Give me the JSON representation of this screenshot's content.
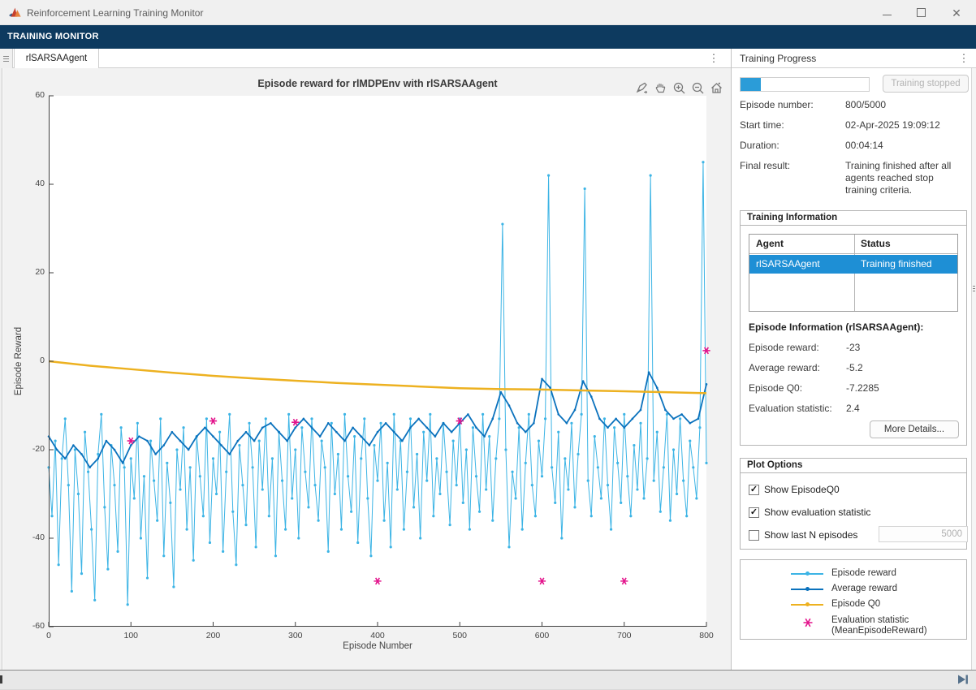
{
  "window": {
    "title": "Reinforcement Learning Training Monitor"
  },
  "ribbon": {
    "tab_label": "TRAINING MONITOR"
  },
  "document_tabs": {
    "active_tab": "rlSARSAAgent"
  },
  "figure_toolbar": {
    "icons": [
      "brush-icon",
      "pan-icon",
      "zoom-in-icon",
      "zoom-out-icon",
      "home-icon"
    ]
  },
  "panel": {
    "title": "Training Progress",
    "progress": {
      "percent": 16,
      "button_label": "Training stopped"
    },
    "fields": [
      {
        "label": "Episode number:",
        "value": "800/5000"
      },
      {
        "label": "Start time:",
        "value": "02-Apr-2025 19:09:12"
      },
      {
        "label": "Duration:",
        "value": "00:04:14"
      },
      {
        "label": "Final result:",
        "value": "Training finished after all agents reached stop training criteria."
      }
    ],
    "training_information": {
      "header": "Training Information",
      "table": {
        "columns": [
          "Agent",
          "Status"
        ],
        "rows": [
          {
            "agent": "rlSARSAAgent",
            "status": "Training finished",
            "selected": true
          }
        ]
      },
      "episode_info_header": "Episode Information (rlSARSAAgent):",
      "episode_fields": [
        {
          "label": "Episode reward:",
          "value": "-23"
        },
        {
          "label": "Average reward:",
          "value": "-5.2"
        },
        {
          "label": "Episode Q0:",
          "value": "-7.2285"
        },
        {
          "label": "Evaluation statistic:",
          "value": "2.4"
        }
      ],
      "more_details_label": "More Details..."
    },
    "plot_options": {
      "header": "Plot Options",
      "checkboxes": [
        {
          "label": "Show EpisodeQ0",
          "checked": true
        },
        {
          "label": "Show evaluation statistic",
          "checked": true
        },
        {
          "label": "Show last N episodes",
          "checked": false
        }
      ],
      "n_episodes_value": "5000"
    },
    "legend": [
      {
        "label": "Episode reward",
        "color": "#3cb4e5",
        "type": "line"
      },
      {
        "label": "Average reward",
        "color": "#0b72bd",
        "type": "line"
      },
      {
        "label": "Episode Q0",
        "color": "#edb120",
        "type": "line"
      },
      {
        "label": "Evaluation statistic",
        "label2": "(MeanEpisodeReward)",
        "color": "#e3148c",
        "type": "asterisk"
      }
    ]
  },
  "colors": {
    "ribbon": "#0d3a5f",
    "selected_row": "#1e8fd5",
    "progress_fill": "#2b9cd8",
    "episode_reward": "#3cb4e5",
    "average_reward": "#0b72bd",
    "episode_q0": "#edb120",
    "evaluation": "#e3148c"
  },
  "chart_data": {
    "type": "line",
    "title": "Episode reward for rlMDPEnv with rlSARSAAgent",
    "xlabel": "Episode Number",
    "ylabel": "Episode Reward",
    "xlim": [
      0,
      800
    ],
    "ylim": [
      -60,
      60
    ],
    "xticks": [
      0,
      100,
      200,
      300,
      400,
      500,
      600,
      700,
      800
    ],
    "yticks": [
      60,
      40,
      20,
      0,
      -20,
      -40,
      -60
    ],
    "grid": false,
    "legend_position": "external-right-panel",
    "series": [
      {
        "name": "Episode reward",
        "color": "#3cb4e5",
        "width": 1,
        "marker_r": 1.6,
        "x_start": 0,
        "x_step": 4,
        "values": [
          -24,
          -35,
          -18,
          -46,
          -22,
          -13,
          -28,
          -52,
          -20,
          -30,
          -48,
          -16,
          -25,
          -38,
          -54,
          -21,
          -12,
          -33,
          -47,
          -19,
          -28,
          -43,
          -15,
          -24,
          -55,
          -22,
          -31,
          -14,
          -40,
          -26,
          -49,
          -18,
          -27,
          -36,
          -13,
          -44,
          -23,
          -32,
          -51,
          -20,
          -29,
          -15,
          -38,
          -24,
          -45,
          -17,
          -26,
          -35,
          -13,
          -41,
          -22,
          -30,
          -16,
          -43,
          -25,
          -12,
          -34,
          -46,
          -19,
          -28,
          -37,
          -14,
          -24,
          -42,
          -18,
          -29,
          -13,
          -35,
          -22,
          -44,
          -16,
          -27,
          -38,
          -12,
          -31,
          -20,
          -40,
          -15,
          -25,
          -33,
          -13,
          -28,
          -36,
          -18,
          -24,
          -43,
          -14,
          -30,
          -21,
          -38,
          -12,
          -26,
          -34,
          -17,
          -41,
          -22,
          -13,
          -31,
          -44,
          -19,
          -27,
          -14,
          -36,
          -23,
          -42,
          -12,
          -29,
          -18,
          -38,
          -25,
          -13,
          -33,
          -21,
          -40,
          -16,
          -27,
          -12,
          -35,
          -22,
          -30,
          -14,
          -25,
          -37,
          -18,
          -28,
          -13,
          -32,
          -20,
          -38,
          -15,
          -26,
          -34,
          -12,
          -29,
          -17,
          -36,
          -22,
          -13,
          31,
          -20,
          -42,
          -25,
          -31,
          -15,
          -38,
          -23,
          -12,
          -28,
          -35,
          -18,
          -26,
          -13,
          42,
          -24,
          -32,
          -16,
          -40,
          -22,
          -29,
          -14,
          -33,
          -21,
          -12,
          39,
          -27,
          -35,
          -17,
          -24,
          -31,
          -13,
          -28,
          -38,
          -15,
          -23,
          -32,
          -12,
          -26,
          -35,
          -19,
          -29,
          -14,
          -31,
          -22,
          42,
          -27,
          -16,
          -34,
          -24,
          -12,
          -36,
          -20,
          -30,
          -13,
          -27,
          -35,
          -18,
          -24,
          -31,
          -15,
          45,
          -23
        ]
      },
      {
        "name": "Average reward",
        "color": "#0b72bd",
        "width": 1.8,
        "marker_r": 1.3,
        "x_start": 0,
        "x_step": 10,
        "values": [
          -17,
          -20,
          -22,
          -19,
          -21,
          -24,
          -22,
          -18,
          -20,
          -23,
          -19,
          -17,
          -18,
          -21,
          -19,
          -16,
          -18,
          -20,
          -17,
          -15,
          -17,
          -19,
          -21,
          -18,
          -16,
          -18,
          -15,
          -14,
          -16,
          -18,
          -15,
          -13,
          -15,
          -17,
          -14,
          -16,
          -18,
          -15,
          -17,
          -19,
          -16,
          -14,
          -16,
          -18,
          -15,
          -13,
          -15,
          -17,
          -14,
          -16,
          -14,
          -12,
          -15,
          -17,
          -13,
          -7,
          -10,
          -14,
          -16,
          -14,
          -4,
          -6,
          -12,
          -14,
          -11,
          -4.5,
          -8,
          -13,
          -15,
          -13,
          -15,
          -13,
          -11,
          -2.5,
          -6,
          -11,
          -13,
          -12,
          -14,
          -13,
          -5.2
        ]
      },
      {
        "name": "Episode Q0",
        "color": "#edb120",
        "width": 2.5,
        "x_start": 0,
        "x_step": 50,
        "values": [
          0,
          -1.0,
          -1.8,
          -2.6,
          -3.3,
          -3.9,
          -4.4,
          -4.9,
          -5.3,
          -5.7,
          -6.1,
          -6.3,
          -6.4,
          -6.6,
          -6.8,
          -7.0,
          -7.23
        ]
      },
      {
        "name": "Evaluation statistic (MeanEpisodeReward)",
        "type": "scatter-asterisk",
        "color": "#e3148c",
        "x": [
          100,
          200,
          300,
          400,
          500,
          600,
          700,
          800
        ],
        "y": [
          -18,
          -13.5,
          -13.8,
          -49.7,
          -13.5,
          -49.7,
          -49.7,
          2.4
        ]
      }
    ]
  }
}
